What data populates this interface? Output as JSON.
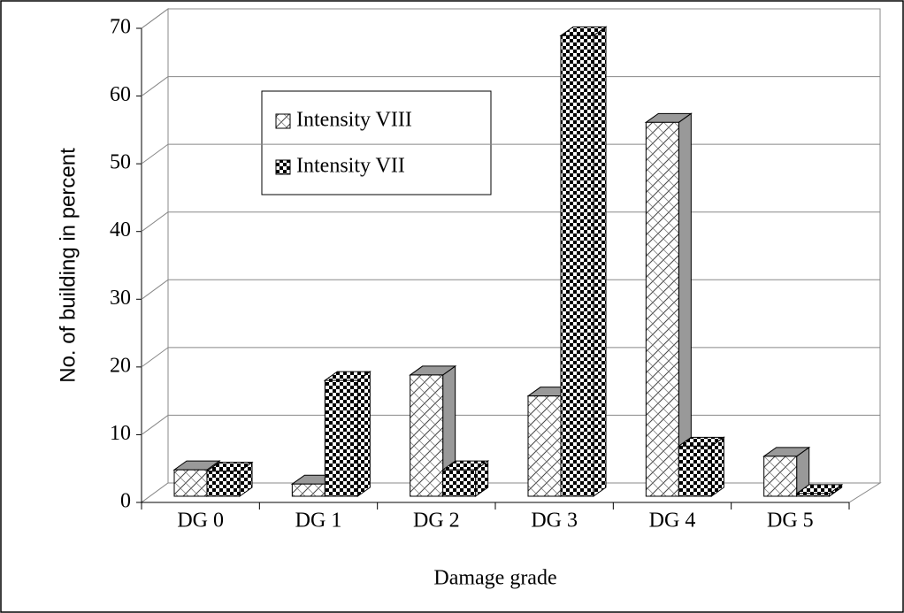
{
  "chart_data": {
    "type": "bar3d",
    "x_label": "Damage grade",
    "y_label": "No. of building in percent",
    "categories": [
      "DG 0",
      "DG 1",
      "DG 2",
      "DG 3",
      "DG 4",
      "DG 5"
    ],
    "series": [
      {
        "name": "Intensity VIII",
        "color": "#ffffff",
        "values": [
          3.9,
          1.8,
          17.9,
          14.8,
          55.2,
          5.9
        ]
      },
      {
        "name": "Intensity VII",
        "color": "#000000",
        "values": [
          3.7,
          17.1,
          3.9,
          68,
          7.4,
          0.4
        ]
      }
    ],
    "ylim": [
      0,
      70
    ],
    "yticks": [
      0,
      10,
      20,
      30,
      40,
      50,
      60,
      70
    ],
    "grid": true
  }
}
